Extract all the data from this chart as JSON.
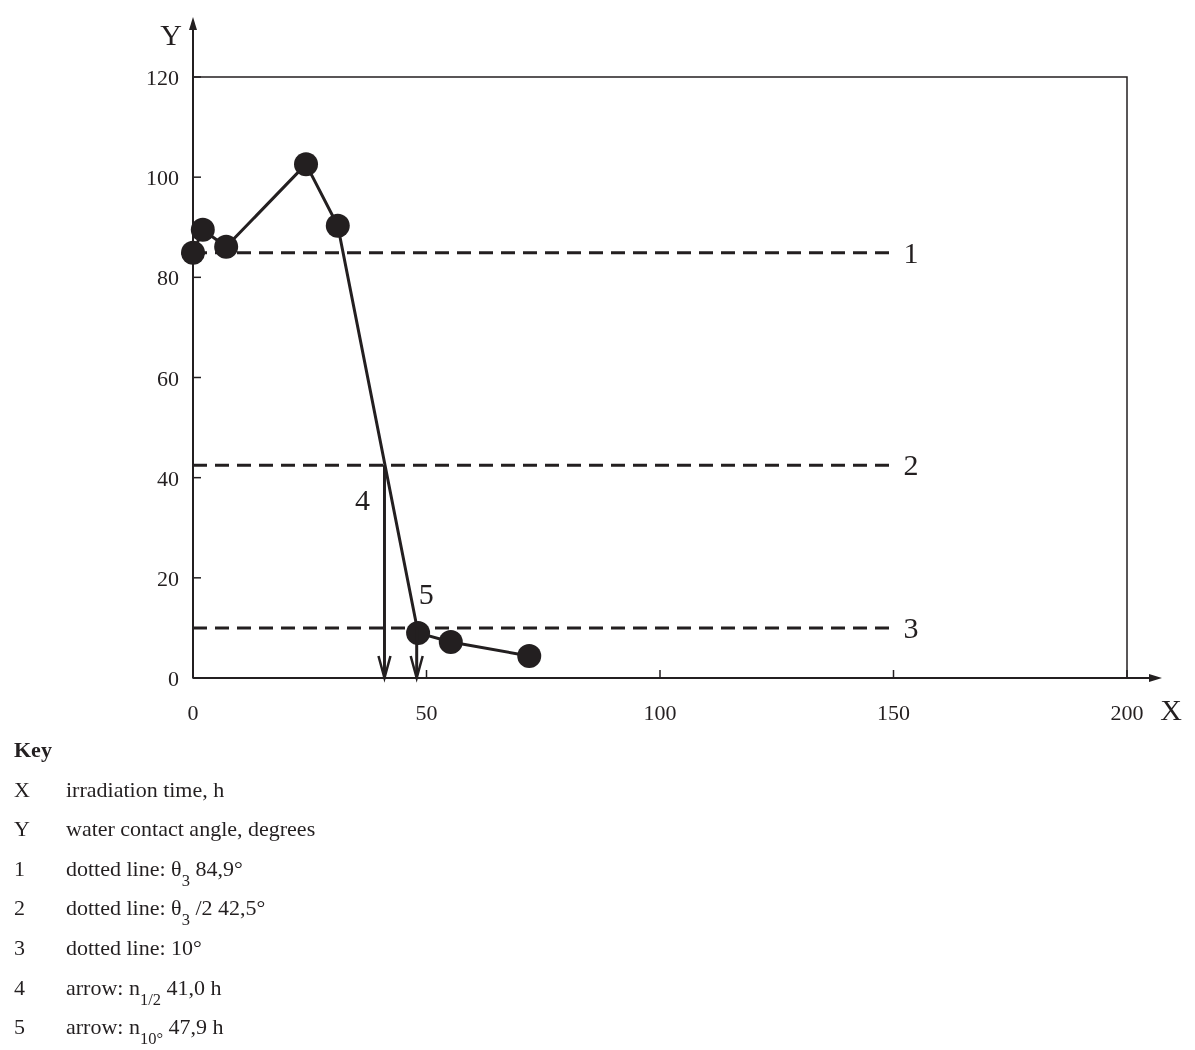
{
  "chart_data": {
    "type": "line",
    "xlabel": "X",
    "ylabel": "Y",
    "xlim": [
      0,
      200
    ],
    "ylim": [
      0,
      120
    ],
    "xticks": [
      0,
      50,
      100,
      150,
      200
    ],
    "yticks": [
      0,
      20,
      40,
      60,
      80,
      100,
      120
    ],
    "grid": false,
    "marker": "circle",
    "line_style": "solid",
    "series": [
      {
        "color": "#231f20",
        "x": [
          0,
          2.1,
          7.1,
          24.2,
          31.0,
          48.2,
          55.2,
          72.0
        ],
        "values": [
          84.9,
          89.5,
          86.1,
          102.6,
          90.3,
          9.0,
          7.2,
          4.4
        ]
      }
    ],
    "ref_lines": [
      {
        "axis": "y",
        "value": 84.9,
        "line_style": "dashed",
        "color": "#231f20"
      },
      {
        "axis": "y",
        "value": 42.5,
        "line_style": "dashed",
        "color": "#231f20"
      },
      {
        "axis": "y",
        "value": 10,
        "line_style": "dashed",
        "color": "#231f20"
      }
    ],
    "annotations": [
      {
        "text": "1",
        "x": 150,
        "y": 84.9
      },
      {
        "text": "2",
        "x": 150,
        "y": 42.5
      },
      {
        "text": "3",
        "x": 150,
        "y": 10
      },
      {
        "text": "4",
        "x": 41.0,
        "y": 42.5
      },
      {
        "text": "5",
        "x": 47.9,
        "y": 10
      },
      "Key",
      "X irradiation time, h",
      "Y water contact angle, degrees",
      "1 dotted line: θ$_{3}$ 84,9°",
      "2 dotted line: θ$_{3}$ /2 42,5°",
      "3 dotted line: 10°",
      "4 arrow: n$_{1/2}$ 41,0 h",
      "5 arrow: n$_{10°}$ 47,9 h"
    ]
  }
}
